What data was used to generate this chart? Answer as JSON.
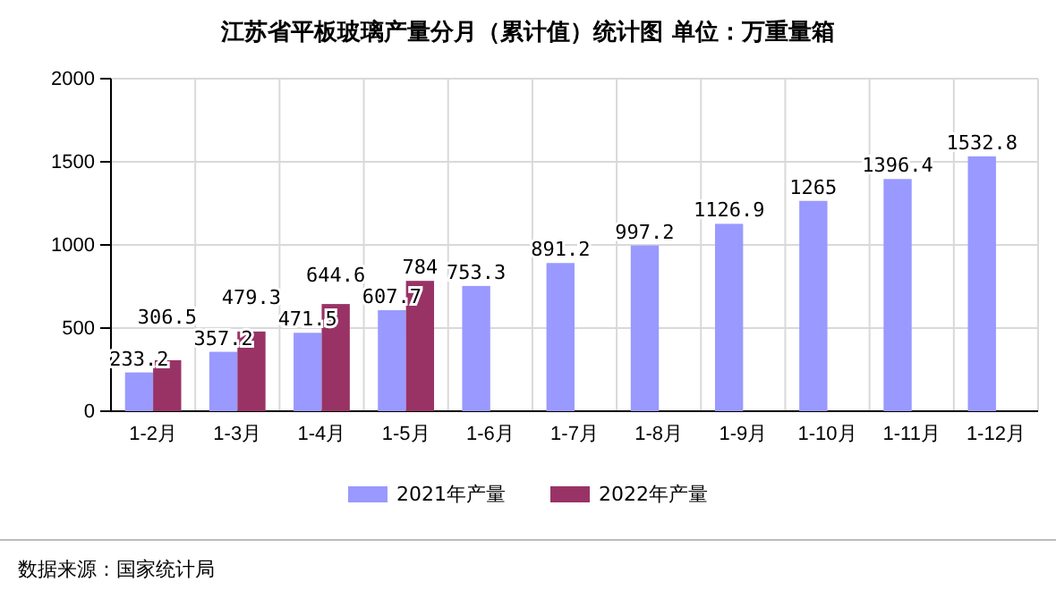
{
  "chart_data": {
    "type": "bar",
    "title": "江苏省平板玻璃产量分月（累计值）统计图 单位：万重量箱",
    "categories": [
      "1-2月",
      "1-3月",
      "1-4月",
      "1-5月",
      "1-6月",
      "1-7月",
      "1-8月",
      "1-9月",
      "1-10月",
      "1-11月",
      "1-12月"
    ],
    "series": [
      {
        "name": "2021年产量",
        "color": "#9999ff",
        "values": [
          233.2,
          357.2,
          471.5,
          607.7,
          753.3,
          891.2,
          997.2,
          1126.9,
          1265,
          1396.4,
          1532.8
        ]
      },
      {
        "name": "2022年产量",
        "color": "#993366",
        "values": [
          306.5,
          479.3,
          644.6,
          784,
          null,
          null,
          null,
          null,
          null,
          null,
          null
        ]
      }
    ],
    "ylim": [
      0,
      2000
    ],
    "yticks": [
      0,
      500,
      1000,
      1500,
      2000
    ],
    "grid": true,
    "legend": "bottom",
    "data_labels": true,
    "annotations": [
      "数据来源：国家统计局"
    ]
  }
}
